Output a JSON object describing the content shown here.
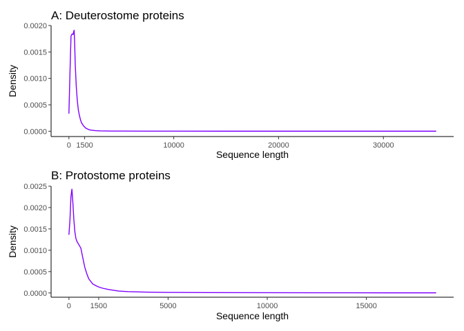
{
  "chart_data": [
    {
      "type": "line",
      "title": "A: Deuterostome proteins",
      "xlabel": "Sequence length",
      "ylabel": "Density",
      "xlim": [
        -1700,
        36700
      ],
      "ylim": [
        -0.0001,
        0.002
      ],
      "x_ticks": [
        0,
        1500,
        10000,
        20000,
        30000
      ],
      "x_tick_labels": [
        "0",
        "1500",
        "10000",
        "20000",
        "30000"
      ],
      "y_ticks": [
        0,
        0.0005,
        0.001,
        0.0015,
        0.002
      ],
      "y_tick_labels": [
        "0.0000",
        "0.0005",
        "0.0010",
        "0.0015",
        "0.0020"
      ],
      "grid": false,
      "color": "#7f00ff",
      "series": [
        {
          "x": [
            0,
            100,
            200,
            300,
            400,
            450,
            500,
            550,
            600,
            700,
            800,
            900,
            1000,
            1100,
            1200,
            1400,
            1600,
            1800,
            2000,
            2500,
            3000,
            4000,
            5000,
            7000,
            10000,
            15000,
            20000,
            25000,
            30000,
            35000
          ],
          "y": [
            0.00034,
            0.0011,
            0.0018,
            0.00184,
            0.00183,
            0.00188,
            0.00191,
            0.00165,
            0.00128,
            0.00085,
            0.00058,
            0.0004,
            0.0003,
            0.00022,
            0.00016,
            0.0001,
            6e-05,
            4e-05,
            2.5e-05,
            1.2e-05,
            7e-06,
            4e-06,
            3e-06,
            2e-06,
            1.5e-06,
            1e-06,
            1e-06,
            1e-06,
            1e-06,
            1e-06
          ]
        }
      ]
    },
    {
      "type": "line",
      "title": "B: Protostome proteins",
      "xlabel": "Sequence length",
      "ylabel": "Density",
      "xlim": [
        -900,
        19400
      ],
      "ylim": [
        -0.0001,
        0.0025
      ],
      "x_ticks": [
        0,
        1500,
        5000,
        10000,
        15000
      ],
      "x_tick_labels": [
        "0",
        "1500",
        "5000",
        "10000",
        "15000"
      ],
      "y_ticks": [
        0,
        0.0005,
        0.001,
        0.0015,
        0.002,
        0.0025
      ],
      "y_tick_labels": [
        "0.0000",
        "0.0005",
        "0.0010",
        "0.0015",
        "0.0020",
        "0.0025"
      ],
      "grid": false,
      "color": "#7f00ff",
      "series": [
        {
          "x": [
            0,
            50,
            100,
            150,
            200,
            250,
            300,
            350,
            400,
            500,
            600,
            700,
            800,
            900,
            1000,
            1200,
            1400,
            1500,
            1700,
            2000,
            2500,
            3000,
            4000,
            5000,
            7000,
            10000,
            13000,
            16000,
            18500
          ],
          "y": [
            0.00137,
            0.0017,
            0.00225,
            0.00243,
            0.0021,
            0.0017,
            0.00143,
            0.00128,
            0.00121,
            0.00113,
            0.00105,
            0.00082,
            0.0006,
            0.00045,
            0.00033,
            0.00021,
            0.00016,
            0.00014,
            0.00011,
            8e-05,
            4.5e-05,
            3e-05,
            1.8e-05,
            1.2e-05,
            8e-06,
            6e-06,
            4e-06,
            3e-06,
            3e-06
          ]
        }
      ]
    }
  ]
}
